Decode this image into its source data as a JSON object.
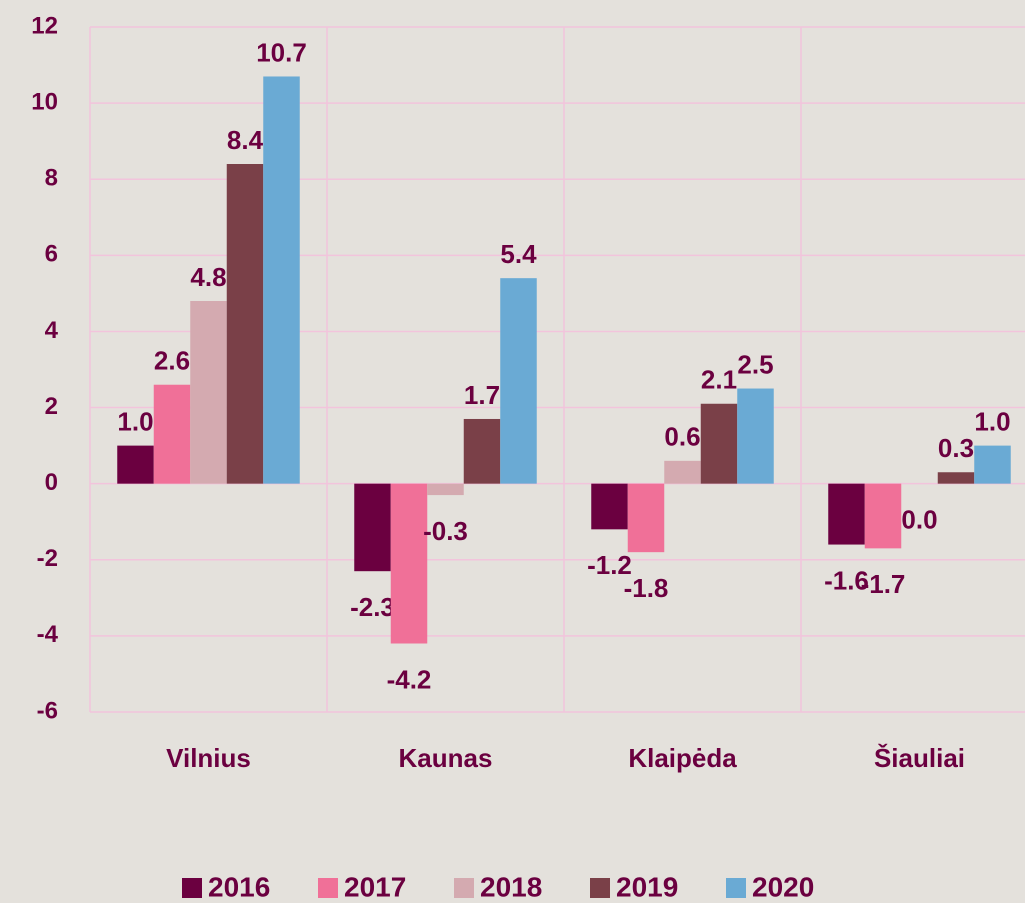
{
  "chart_data": {
    "type": "bar",
    "categories": [
      "Vilnius",
      "Kaunas",
      "Klaipėda",
      "Šiauliai"
    ],
    "series": [
      {
        "name": "2016",
        "color": "#6b0040",
        "values": [
          1.0,
          -2.3,
          -1.2,
          -1.6
        ],
        "value_labels": [
          "1.0",
          "-2.3",
          "-1.2",
          "-1.6"
        ]
      },
      {
        "name": "2017",
        "color": "#f07098",
        "values": [
          2.6,
          -4.2,
          -1.8,
          -1.7
        ],
        "value_labels": [
          "2.6",
          "-4.2",
          "-1.8",
          "-1.7"
        ]
      },
      {
        "name": "2018",
        "color": "#d4aab0",
        "values": [
          4.8,
          -0.3,
          0.6,
          0.0
        ],
        "value_labels": [
          "4.8",
          "-0.3",
          "0.6",
          "0.0"
        ]
      },
      {
        "name": "2019",
        "color": "#7a4048",
        "values": [
          8.4,
          1.7,
          2.1,
          0.3
        ],
        "value_labels": [
          "8.4",
          "1.7",
          "2.1",
          "0.3"
        ]
      },
      {
        "name": "2020",
        "color": "#6aaad4",
        "values": [
          10.7,
          5.4,
          2.5,
          1.0
        ],
        "value_labels": [
          "10.7",
          "5.4",
          "2.5",
          "1.0"
        ]
      }
    ],
    "ylim": [
      -6,
      12
    ],
    "yticks": [
      -6,
      -4,
      -2,
      0,
      2,
      4,
      6,
      8,
      10,
      12
    ],
    "grid": true,
    "legend": "bottom"
  }
}
